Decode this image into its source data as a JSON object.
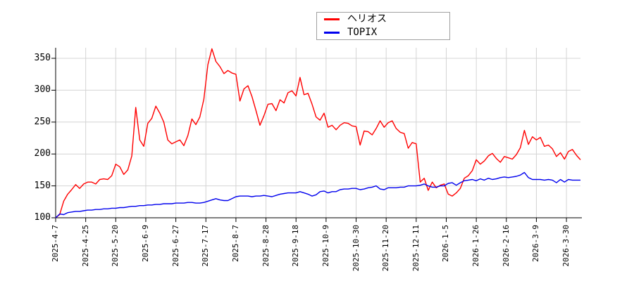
{
  "chart_data": {
    "type": "line",
    "title": "",
    "xlabel": "",
    "ylabel": "",
    "grid": true,
    "legend_position": "top-center",
    "background_color": "#ffffff",
    "grid_color": "#d4d4d4",
    "axis_color": "#000000",
    "y_ticks": [
      100,
      150,
      200,
      250,
      300,
      350
    ],
    "y_range": [
      100,
      367
    ],
    "x_total_days": 262,
    "sample_step_days": 2,
    "x_tick_days": [
      0,
      15,
      30,
      45,
      60,
      75,
      90,
      105,
      120,
      135,
      150,
      165,
      180,
      195,
      210,
      225,
      240,
      255
    ],
    "x_tick_labels": [
      "2025-4-7",
      "2025-4-25",
      "2025-5-20",
      "2025-6-9",
      "2025-6-27",
      "2025-7-17",
      "2025-8-7",
      "2025-8-28",
      "2025-9-18",
      "2025-10-9",
      "2025-10-30",
      "2025-11-20",
      "2025-12-11",
      "2026-1-5",
      "2026-1-26",
      "2026-2-16",
      "2026-3-9",
      "2026-3-30"
    ],
    "series": [
      {
        "name": "ヘリオス",
        "color": "#ff0000",
        "values": [
          100,
          105,
          126,
          137,
          144,
          152,
          146,
          153,
          156,
          156,
          153,
          160,
          161,
          160,
          166,
          184,
          180,
          168,
          175,
          197,
          273,
          222,
          212,
          248,
          256,
          275,
          264,
          250,
          222,
          216,
          219,
          222,
          213,
          229,
          255,
          246,
          258,
          286,
          340,
          365,
          345,
          337,
          326,
          331,
          327,
          325,
          283,
          302,
          307,
          290,
          268,
          245,
          260,
          278,
          279,
          268,
          285,
          280,
          296,
          299,
          291,
          320,
          293,
          295,
          278,
          258,
          253,
          264,
          242,
          245,
          238,
          245,
          249,
          248,
          244,
          243,
          214,
          236,
          235,
          230,
          240,
          252,
          242,
          249,
          252,
          240,
          234,
          232,
          209,
          218,
          216,
          156,
          162,
          143,
          156,
          147,
          151,
          153,
          137,
          134,
          139,
          146,
          162,
          166,
          174,
          191,
          184,
          189,
          197,
          201,
          193,
          187,
          196,
          194,
          192,
          199,
          210,
          237,
          215,
          227,
          222,
          226,
          212,
          214,
          208,
          196,
          202,
          192,
          204,
          207,
          198,
          191
        ]
      },
      {
        "name": "TOPIX",
        "color": "#0000ee",
        "values": [
          100,
          106,
          105,
          108,
          109,
          110,
          110,
          111,
          112,
          112,
          113,
          113,
          114,
          114,
          115,
          115,
          116,
          116,
          117,
          118,
          118,
          119,
          119,
          120,
          120,
          121,
          121,
          122,
          122,
          122,
          123,
          123,
          123,
          124,
          124,
          123,
          123,
          124,
          126,
          128,
          130,
          128,
          127,
          127,
          130,
          133,
          134,
          134,
          134,
          133,
          134,
          134,
          135,
          134,
          133,
          135,
          137,
          138,
          139,
          139,
          139,
          141,
          139,
          137,
          134,
          136,
          141,
          142,
          139,
          141,
          141,
          144,
          145,
          145,
          146,
          146,
          144,
          145,
          147,
          148,
          150,
          145,
          144,
          147,
          147,
          147,
          148,
          148,
          150,
          150,
          150,
          151,
          153,
          150,
          148,
          148,
          150,
          150,
          154,
          155,
          151,
          155,
          158,
          159,
          160,
          158,
          161,
          159,
          162,
          160,
          161,
          163,
          164,
          163,
          164,
          165,
          167,
          171,
          163,
          160,
          160,
          160,
          159,
          160,
          159,
          155,
          160,
          156,
          160,
          159,
          159,
          159
        ]
      }
    ]
  }
}
